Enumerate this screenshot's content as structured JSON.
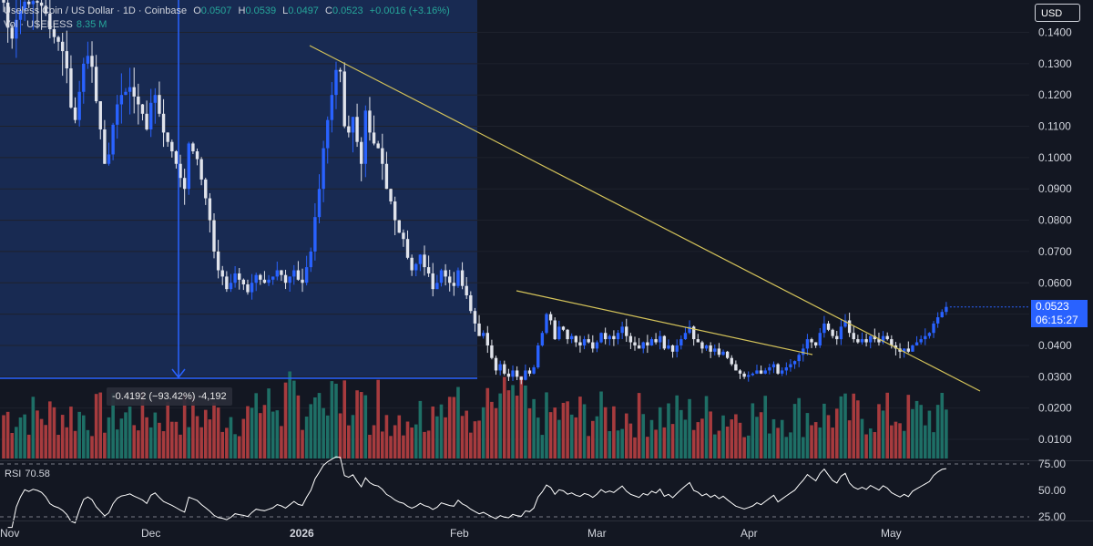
{
  "legend": {
    "symbol_name": "Useless Coin / US Dollar · 1D · Coinbase",
    "open_label": "O",
    "open": "0.0507",
    "high_label": "H",
    "high": "0.0539",
    "low_label": "L",
    "low": "0.0497",
    "close_label": "C",
    "close": "0.0523",
    "change": "+0.0016 (+3.16%)",
    "vol_label": "Vol · USELESS",
    "vol_value": "8.35 M"
  },
  "currency_button": "USD",
  "price_tag": {
    "price": "0.0523",
    "countdown": "06:15:27"
  },
  "measure_label": "-0.4192 (−93.42%) -4,192",
  "rsi": {
    "label": "RSI",
    "value": "70.58"
  },
  "colors": {
    "up": "#2962ff",
    "down": "#e0e3eb",
    "vol_up": "#1e6f66",
    "vol_down": "#a73b3e",
    "trend": "#d4c35a",
    "rsi": "#ffffff",
    "highlight": "#1e3a7a",
    "measure": "#2962ff",
    "background": "#131722"
  },
  "chart_data": {
    "type": "candlestick",
    "title": "Useless Coin / US Dollar · 1D · Coinbase",
    "ohlc_last": {
      "open": 0.0507,
      "high": 0.0539,
      "low": 0.0497,
      "close": 0.0523
    },
    "y_ticks": [
      0.01,
      0.02,
      0.03,
      0.04,
      0.05,
      0.06,
      0.07,
      0.08,
      0.09,
      0.1,
      0.11,
      0.12,
      0.13,
      0.14
    ],
    "ylim": [
      0.0048,
      0.151
    ],
    "x_labels": [
      "Nov",
      "Dec",
      "2026",
      "Feb",
      "Mar",
      "Apr",
      "May"
    ],
    "rsi_ticks": [
      25.0,
      50.0,
      75.0
    ],
    "rsi_last": 70.58,
    "closes": [
      0.1495,
      0.1415,
      0.138,
      0.144,
      0.147,
      0.1498,
      0.149,
      0.15,
      0.1495,
      0.1485,
      0.146,
      0.141,
      0.1385,
      0.137,
      0.134,
      0.1285,
      0.116,
      0.112,
      0.121,
      0.13,
      0.1325,
      0.129,
      0.118,
      0.109,
      0.098,
      0.101,
      0.1105,
      0.117,
      0.12,
      0.121,
      0.1225,
      0.1195,
      0.117,
      0.114,
      0.109,
      0.1175,
      0.12,
      0.114,
      0.108,
      0.105,
      0.102,
      0.098,
      0.0935,
      0.09,
      0.1045,
      0.102,
      0.0995,
      0.093,
      0.087,
      0.08,
      0.07,
      0.064,
      0.062,
      0.058,
      0.06,
      0.063,
      0.061,
      0.0595,
      0.057,
      0.06,
      0.0625,
      0.061,
      0.06,
      0.061,
      0.062,
      0.064,
      0.0625,
      0.06,
      0.062,
      0.064,
      0.061,
      0.06,
      0.065,
      0.07,
      0.081,
      0.09,
      0.103,
      0.112,
      0.12,
      0.128,
      0.1275,
      0.11,
      0.108,
      0.113,
      0.105,
      0.098,
      0.115,
      0.108,
      0.1045,
      0.103,
      0.098,
      0.09,
      0.086,
      0.08,
      0.076,
      0.074,
      0.068,
      0.064,
      0.066,
      0.069,
      0.065,
      0.063,
      0.058,
      0.06,
      0.064,
      0.062,
      0.06,
      0.059,
      0.064,
      0.059,
      0.056,
      0.051,
      0.047,
      0.043,
      0.044,
      0.04,
      0.036,
      0.032,
      0.034,
      0.031,
      0.03,
      0.032,
      0.03,
      0.029,
      0.032,
      0.031,
      0.033,
      0.04,
      0.044,
      0.05,
      0.048,
      0.042,
      0.046,
      0.045,
      0.042,
      0.043,
      0.041,
      0.04,
      0.042,
      0.041,
      0.039,
      0.041,
      0.044,
      0.042,
      0.043,
      0.042,
      0.044,
      0.046,
      0.043,
      0.041,
      0.04,
      0.039,
      0.041,
      0.04,
      0.042,
      0.041,
      0.043,
      0.039,
      0.04,
      0.038,
      0.04,
      0.042,
      0.044,
      0.046,
      0.042,
      0.041,
      0.039,
      0.04,
      0.038,
      0.039,
      0.037,
      0.038,
      0.036,
      0.034,
      0.032,
      0.031,
      0.03,
      0.0305,
      0.031,
      0.032,
      0.031,
      0.032,
      0.033,
      0.034,
      0.031,
      0.032,
      0.033,
      0.034,
      0.035,
      0.037,
      0.039,
      0.042,
      0.041,
      0.04,
      0.044,
      0.047,
      0.045,
      0.043,
      0.042,
      0.046,
      0.048,
      0.044,
      0.042,
      0.041,
      0.042,
      0.041,
      0.043,
      0.042,
      0.041,
      0.043,
      0.042,
      0.04,
      0.039,
      0.038,
      0.039,
      0.038,
      0.04,
      0.041,
      0.042,
      0.043,
      0.044,
      0.047,
      0.049,
      0.0507,
      0.0523
    ]
  }
}
